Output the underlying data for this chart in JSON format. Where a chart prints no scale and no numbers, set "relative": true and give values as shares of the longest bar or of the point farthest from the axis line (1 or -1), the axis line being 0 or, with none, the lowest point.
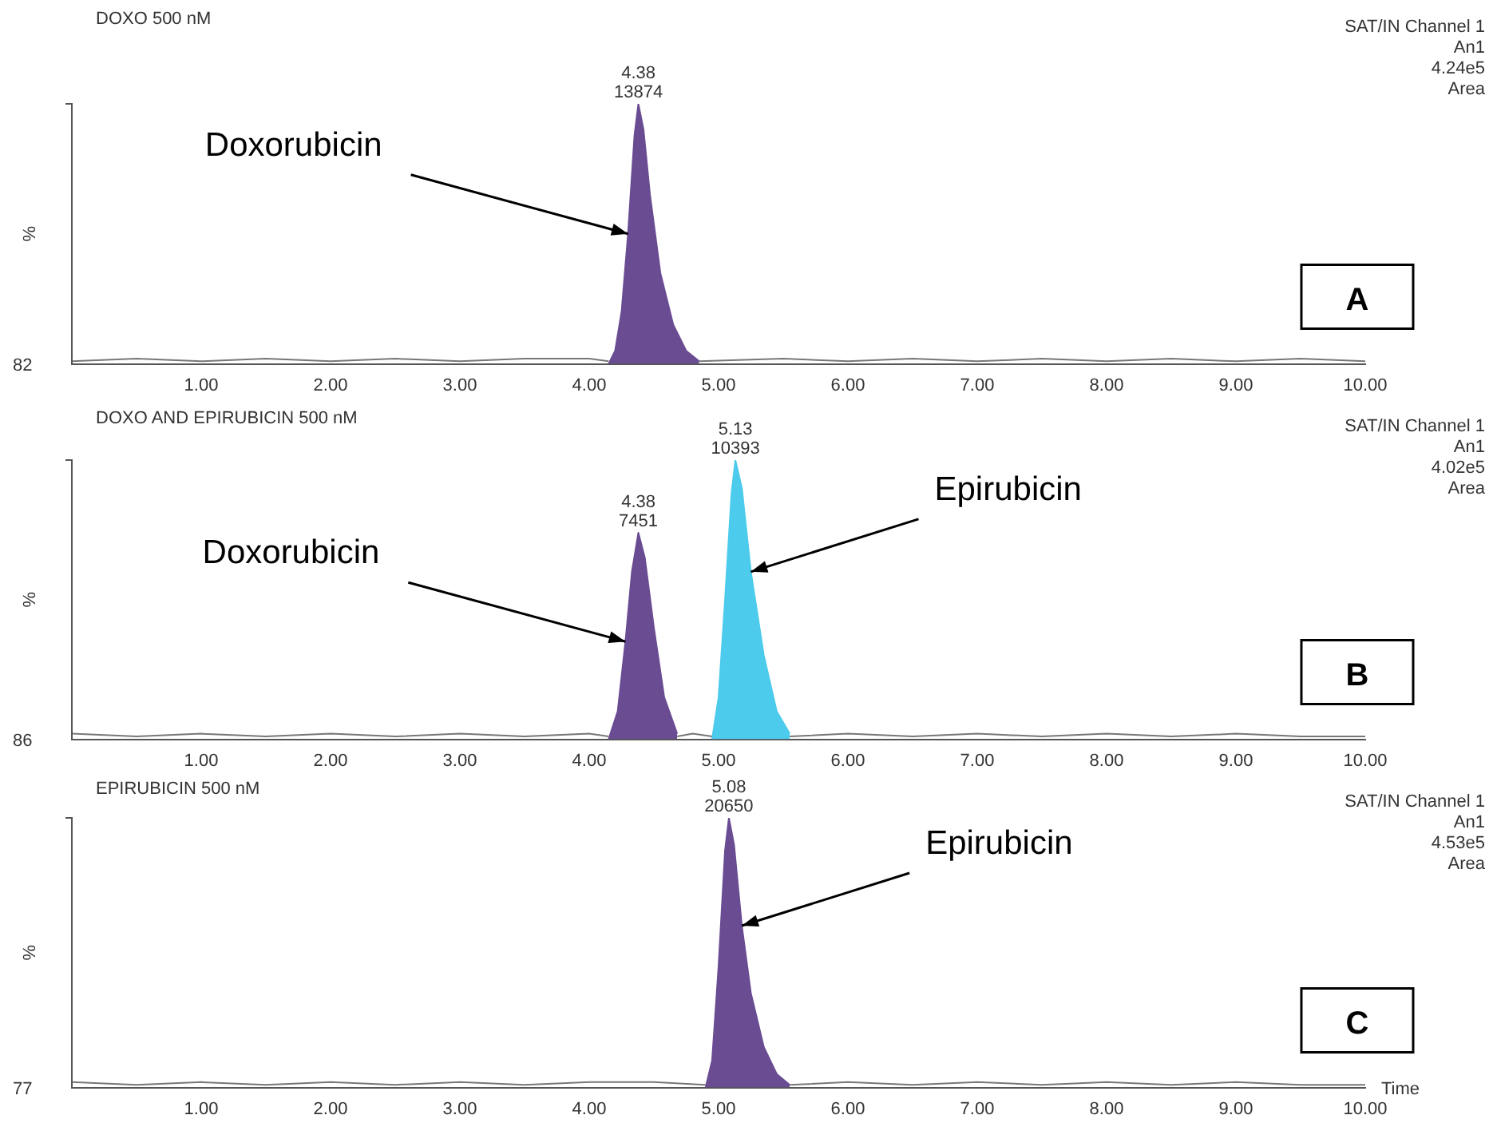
{
  "chart_data": [
    {
      "type": "area",
      "title": "DOXO 500 nM",
      "ylabel": "%",
      "relative": true,
      "xlim": [
        0,
        10
      ],
      "xticks": [
        {
          "value": 1,
          "label": "1.00"
        },
        {
          "value": 2,
          "label": "2.00"
        },
        {
          "value": 3,
          "label": "3.00"
        },
        {
          "value": 4,
          "label": "4.00"
        },
        {
          "value": 5,
          "label": "5.00"
        },
        {
          "value": 6,
          "label": "6.00"
        },
        {
          "value": 7,
          "label": "7.00"
        },
        {
          "value": 8,
          "label": "8.00"
        },
        {
          "value": 9,
          "label": "9.00"
        },
        {
          "value": 10,
          "label": "10.00"
        }
      ],
      "grid": false,
      "legend": false,
      "series": [
        {
          "type": "line",
          "color": "#777777",
          "x": [
            0,
            0.5,
            1,
            1.5,
            2,
            2.5,
            3,
            3.5,
            4,
            4.15,
            4.5,
            4.85,
            5.5,
            6,
            6.5,
            7,
            7.5,
            8,
            8.5,
            9,
            9.5,
            10
          ],
          "values": [
            0.01,
            0.02,
            0.01,
            0.02,
            0.01,
            0.02,
            0.01,
            0.02,
            0.02,
            0.01,
            null,
            0.01,
            0.02,
            0.01,
            0.02,
            0.01,
            0.02,
            0.01,
            0.02,
            0.01,
            0.02,
            0.01
          ]
        },
        {
          "type": "area",
          "color": "#6a4c93",
          "x": [
            4.15,
            4.2,
            4.25,
            4.3,
            4.35,
            4.38,
            4.42,
            4.47,
            4.55,
            4.65,
            4.75,
            4.85
          ],
          "values": [
            0,
            0.05,
            0.2,
            0.5,
            0.88,
            1,
            0.9,
            0.65,
            0.35,
            0.15,
            0.05,
            0.01
          ]
        }
      ],
      "annotations": [
        "SAT/IN Channel 1",
        "An1",
        "4.24e5",
        "Area",
        "82",
        "A",
        {
          "text": "4.38\n13874",
          "x": 4.38,
          "y": 1
        },
        {
          "text": "Doxorubicin",
          "x": 4.3,
          "y": 0.5
        }
      ]
    },
    {
      "type": "area",
      "title": "DOXO AND EPIRUBICIN 500 nM",
      "ylabel": "%",
      "relative": true,
      "xlim": [
        0,
        10
      ],
      "xticks": [
        {
          "value": 1,
          "label": "1.00"
        },
        {
          "value": 2,
          "label": "2.00"
        },
        {
          "value": 3,
          "label": "3.00"
        },
        {
          "value": 4,
          "label": "4.00"
        },
        {
          "value": 5,
          "label": "5.00"
        },
        {
          "value": 6,
          "label": "6.00"
        },
        {
          "value": 7,
          "label": "7.00"
        },
        {
          "value": 8,
          "label": "8.00"
        },
        {
          "value": 9,
          "label": "9.00"
        },
        {
          "value": 10,
          "label": "10.00"
        }
      ],
      "grid": false,
      "legend": false,
      "series": [
        {
          "type": "line",
          "color": "#777777",
          "x": [
            0,
            0.5,
            1,
            1.5,
            2,
            2.5,
            3,
            3.5,
            4,
            4.15,
            4.4,
            4.68,
            4.8,
            4.95,
            5.2,
            5.55,
            6,
            6.5,
            7,
            7.5,
            8,
            8.5,
            9,
            9.5,
            10
          ],
          "values": [
            0.02,
            0.01,
            0.02,
            0.01,
            0.02,
            0.01,
            0.02,
            0.01,
            0.02,
            0.01,
            null,
            0.01,
            0.02,
            0.01,
            null,
            0.01,
            0.02,
            0.01,
            0.02,
            0.01,
            0.02,
            0.01,
            0.02,
            0.01,
            0.01
          ]
        },
        {
          "type": "area",
          "color": "#6a4c93",
          "x": [
            4.15,
            4.22,
            4.28,
            4.33,
            4.38,
            4.43,
            4.5,
            4.58,
            4.68
          ],
          "values": [
            0,
            0.1,
            0.35,
            0.6,
            0.74,
            0.65,
            0.4,
            0.15,
            0.02
          ]
        },
        {
          "type": "area",
          "color": "#4ccbec",
          "x": [
            4.95,
            5,
            5.05,
            5.1,
            5.13,
            5.18,
            5.25,
            5.35,
            5.45,
            5.55
          ],
          "values": [
            0,
            0.15,
            0.5,
            0.88,
            1,
            0.9,
            0.6,
            0.3,
            0.1,
            0.02
          ]
        }
      ],
      "annotations": [
        "SAT/IN Channel 1",
        "An1",
        "4.02e5",
        "Area",
        "86",
        "B",
        {
          "text": "4.38\n7451",
          "x": 4.38,
          "y": 0.74
        },
        {
          "text": "5.13\n10393",
          "x": 5.13,
          "y": 1
        },
        {
          "text": "Doxorubicin",
          "x": 4.28,
          "y": 0.35
        },
        {
          "text": "Epirubicin",
          "x": 5.25,
          "y": 0.6
        }
      ]
    },
    {
      "type": "area",
      "title": "EPIRUBICIN 500 nM",
      "ylabel": "%",
      "xlabel": "Time",
      "relative": true,
      "xlim": [
        0,
        10
      ],
      "xticks": [
        {
          "value": 1,
          "label": "1.00"
        },
        {
          "value": 2,
          "label": "2.00"
        },
        {
          "value": 3,
          "label": "3.00"
        },
        {
          "value": 4,
          "label": "4.00"
        },
        {
          "value": 5,
          "label": "5.00"
        },
        {
          "value": 6,
          "label": "6.00"
        },
        {
          "value": 7,
          "label": "7.00"
        },
        {
          "value": 8,
          "label": "8.00"
        },
        {
          "value": 9,
          "label": "9.00"
        },
        {
          "value": 10,
          "label": "10.00"
        }
      ],
      "grid": false,
      "legend": false,
      "series": [
        {
          "type": "line",
          "color": "#777777",
          "x": [
            0,
            0.5,
            1,
            1.5,
            2,
            2.5,
            3,
            3.5,
            4,
            4.5,
            4.9,
            5.2,
            5.55,
            6,
            6.5,
            7,
            7.5,
            8,
            8.5,
            9,
            9.5,
            10
          ],
          "values": [
            0.02,
            0.01,
            0.02,
            0.01,
            0.02,
            0.01,
            0.02,
            0.01,
            0.02,
            0.02,
            0.01,
            null,
            0.01,
            0.02,
            0.01,
            0.02,
            0.01,
            0.02,
            0.01,
            0.02,
            0.01,
            0.01
          ]
        },
        {
          "type": "area",
          "color": "#6a4c93",
          "x": [
            4.9,
            4.95,
            5,
            5.05,
            5.08,
            5.12,
            5.18,
            5.25,
            5.35,
            5.45,
            5.55
          ],
          "values": [
            0,
            0.1,
            0.45,
            0.88,
            1,
            0.9,
            0.6,
            0.35,
            0.15,
            0.05,
            0.01
          ]
        }
      ],
      "annotations": [
        "SAT/IN Channel 1",
        "An1",
        "4.53e5",
        "Area",
        "77",
        "C",
        {
          "text": "5.08\n20650",
          "x": 5.08,
          "y": 1
        },
        {
          "text": "Epirubicin",
          "x": 5.18,
          "y": 0.6
        }
      ]
    }
  ]
}
